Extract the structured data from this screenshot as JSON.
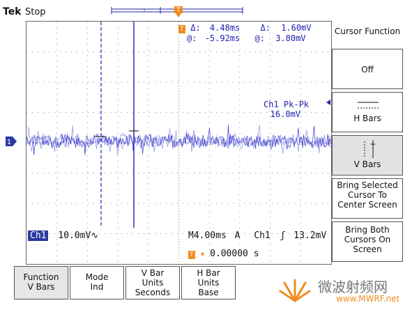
{
  "header": {
    "brand": "Tek",
    "status": "Stop"
  },
  "readout": {
    "delta_time_label": "Δ:",
    "delta_time": "4.48ms",
    "delta_volt_label": "Δ:",
    "delta_volt": "1.60mV",
    "at_time_label": "@:",
    "at_time": "-5.92ms",
    "at_volt_label": "@:",
    "at_volt": "3.80mV"
  },
  "measure": {
    "label": "Ch1 Pk-Pk",
    "value": "16.0mV"
  },
  "bottom_readout": {
    "ch_badge": "Ch1",
    "ch_scale": "10.0mV∿",
    "timebase": "M4.00ms",
    "trig_mode": "A",
    "trig_ch": "Ch1",
    "trig_level": "13.2mV",
    "trig_pos": "0.00000 s"
  },
  "sidebar": {
    "title": "Cursor Function",
    "buttons": [
      {
        "label": "Off"
      },
      {
        "label": "H Bars"
      },
      {
        "label": "V Bars"
      },
      {
        "label": "Bring Selected Cursor To Center Screen"
      },
      {
        "label": "Bring Both Cursors On Screen"
      }
    ]
  },
  "bottom_buttons": [
    {
      "line1": "Function",
      "line2": "V Bars"
    },
    {
      "line1": "Mode",
      "line2": "Ind"
    },
    {
      "line1": "V Bar",
      "line2": "Units",
      "line3": "Seconds"
    },
    {
      "line1": "H Bar",
      "line2": "Units",
      "line3": "Base"
    }
  ],
  "watermark": {
    "text_cn": "微波射频网",
    "text_url": "www.MWRF.net"
  },
  "colors": {
    "trace": "#3a3ad0",
    "cursor": "#2020a8",
    "readout": "#2020b0",
    "accent": "#f08c1e"
  }
}
